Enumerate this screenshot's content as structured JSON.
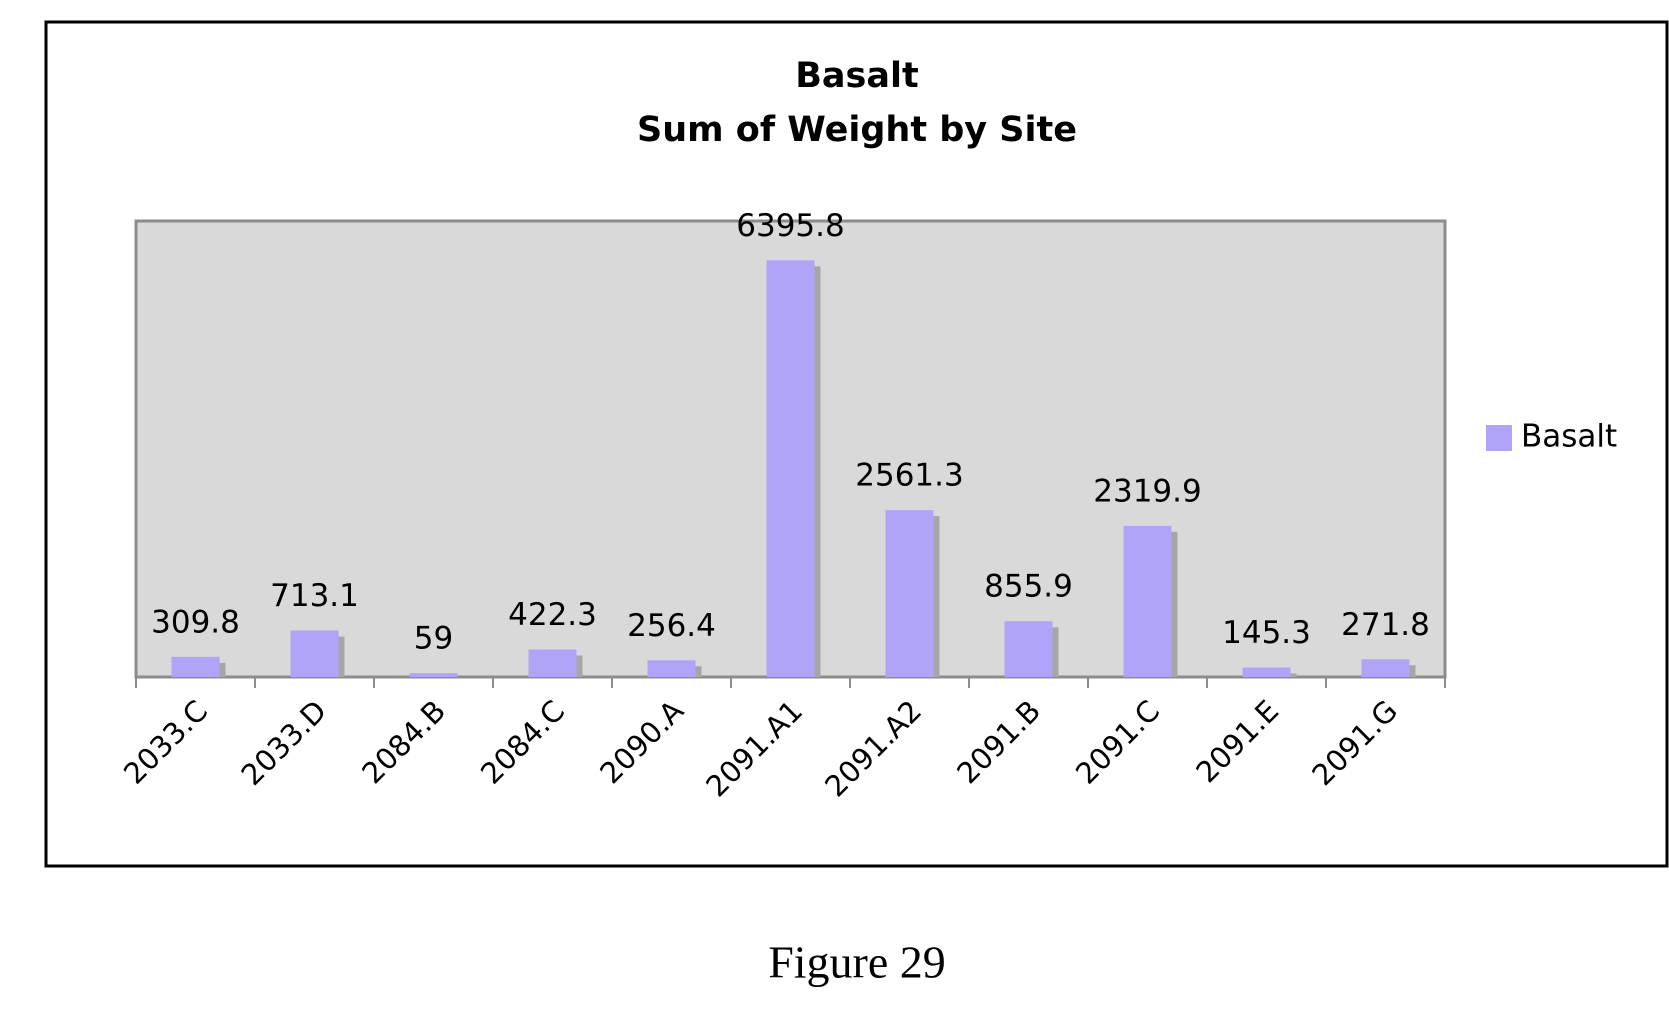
{
  "chart_data": {
    "type": "bar",
    "title": "Basalt",
    "subtitle": "Sum of Weight by Site",
    "caption": "Figure 29",
    "categories": [
      "2033.C",
      "2033.D",
      "2084.B",
      "2084.C",
      "2090.A",
      "2091.A1",
      "2091.A2",
      "2091.B",
      "2091.C",
      "2091.E",
      "2091.G"
    ],
    "series": [
      {
        "name": "Basalt",
        "color": "#b0a4f8",
        "values": [
          309.8,
          713.1,
          59,
          422.3,
          256.4,
          6395.8,
          2561.3,
          855.9,
          2319.9,
          145.3,
          271.8
        ]
      }
    ],
    "ylim": [
      0,
      7000
    ],
    "legend": "right"
  }
}
